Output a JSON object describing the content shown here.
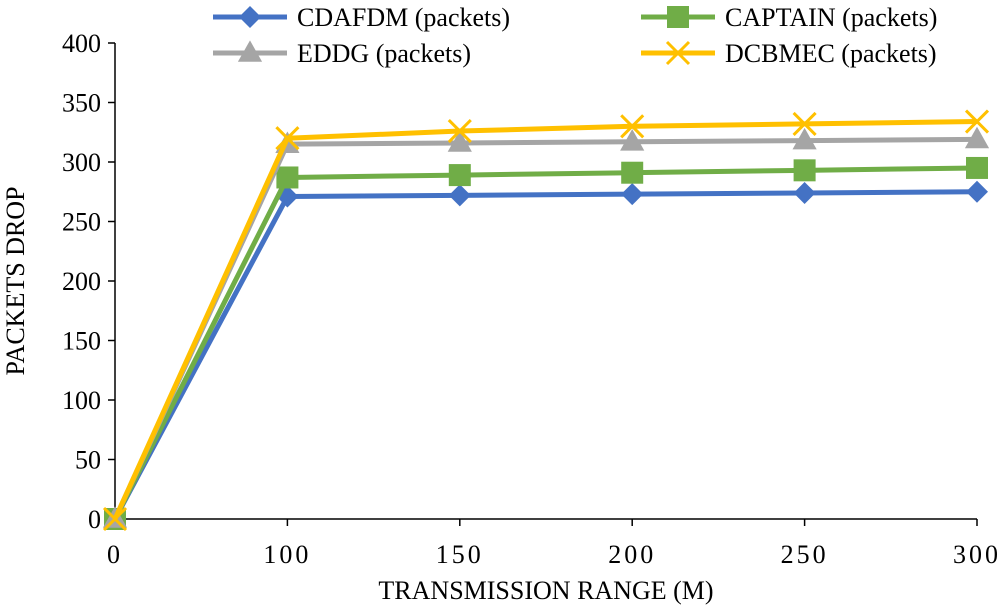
{
  "chart_data": {
    "type": "line",
    "title": "",
    "xlabel": "TRANSMISSION RANGE (M)",
    "ylabel": "PACKETS DROP",
    "categories": [
      "0",
      "100",
      "150",
      "200",
      "250",
      "300"
    ],
    "ylim": [
      0,
      400
    ],
    "yticks": [
      "0",
      "50",
      "100",
      "150",
      "200",
      "250",
      "300",
      "350",
      "400"
    ],
    "grid": false,
    "legend_position": "top",
    "series": [
      {
        "name": "CDAFDM (packets)",
        "color": "#4472c4",
        "marker": "diamond",
        "values": [
          0,
          271,
          272,
          273,
          274,
          275
        ]
      },
      {
        "name": "CAPTAIN (packets)",
        "color": "#70ad47",
        "marker": "square",
        "values": [
          0,
          287,
          289,
          291,
          293,
          295
        ]
      },
      {
        "name": "EDDG (packets)",
        "color": "#a5a5a5",
        "marker": "triangle",
        "values": [
          0,
          315,
          316,
          317,
          318,
          319
        ]
      },
      {
        "name": "DCBMEC (packets)",
        "color": "#ffc000",
        "marker": "x",
        "values": [
          0,
          320,
          326,
          330,
          332,
          334
        ]
      }
    ]
  }
}
